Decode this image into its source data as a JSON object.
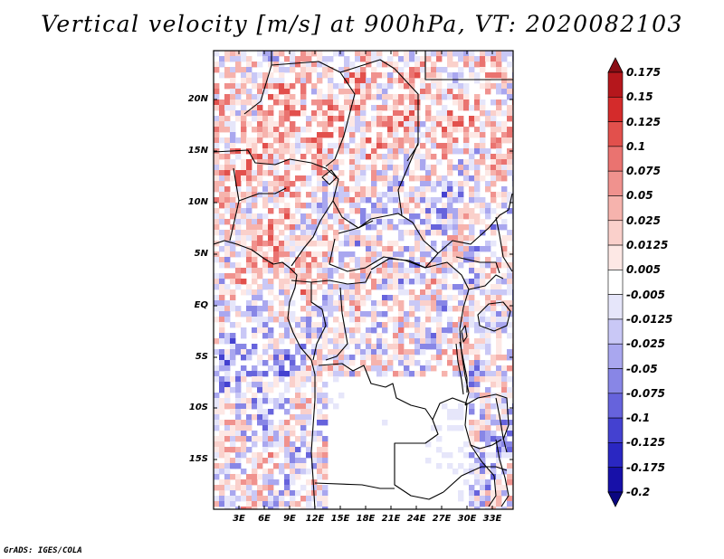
{
  "title": "Vertical velocity [m/s] at 900hPa, VT: 2020082103",
  "map": {
    "variable": "Vertical velocity",
    "units": "m/s",
    "level": "900hPa",
    "valid_time": "2020082103",
    "lat_ticks": [
      "20N",
      "15N",
      "10N",
      "5N",
      "EQ",
      "5S",
      "10S",
      "15S"
    ],
    "lon_ticks": [
      "3E",
      "6E",
      "9E",
      "12E",
      "15E",
      "18E",
      "21E",
      "24E",
      "27E",
      "30E",
      "33E"
    ]
  },
  "colorbar": {
    "levels": [
      "0.175",
      "0.15",
      "0.125",
      "0.1",
      "0.075",
      "0.05",
      "0.025",
      "0.0125",
      "0.005",
      "-0.005",
      "-0.0125",
      "-0.025",
      "-0.05",
      "-0.075",
      "-0.1",
      "-0.125",
      "-0.175",
      "-0.2"
    ],
    "colors": [
      "#8a0d14",
      "#b5171c",
      "#d42b2b",
      "#e2504c",
      "#ea7370",
      "#f0928e",
      "#f6b3ad",
      "#fad0cb",
      "#fde8e5",
      "#ffffff",
      "#e6e6fa",
      "#c9c8f6",
      "#a9a7ef",
      "#8886e6",
      "#6663dc",
      "#4441d0",
      "#2a27c2",
      "#1710a8",
      "#0a0680"
    ]
  },
  "footer": "GrADS: IGES/COLA"
}
